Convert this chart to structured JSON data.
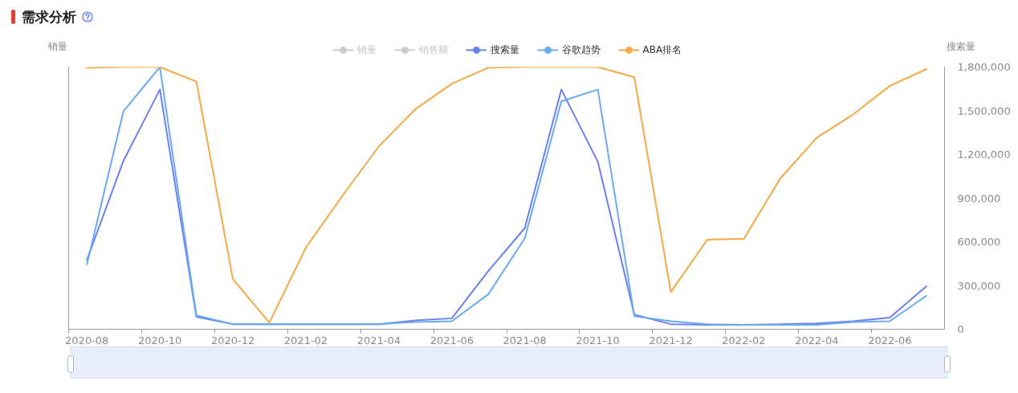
{
  "chart_data": {
    "type": "line",
    "title": "需求分析",
    "ylabel": "销量",
    "y2label": "搜索量",
    "categories": [
      "2020-08",
      null,
      "2020-10",
      null,
      "2020-12",
      null,
      "2021-02",
      null,
      "2021-04",
      null,
      "2021-06",
      null,
      "2021-08",
      null,
      "2021-10",
      null,
      "2021-12",
      null,
      "2022-02",
      null,
      "2022-04",
      null,
      "2022-06",
      null
    ],
    "series": [
      {
        "name": "销量",
        "color": "#cccccc",
        "values": [
          null,
          null,
          null,
          null,
          null,
          null,
          null,
          null,
          null,
          null,
          null,
          null,
          null,
          null,
          null,
          null,
          null,
          null,
          null,
          null,
          null,
          null,
          null,
          null
        ]
      },
      {
        "name": "销售额",
        "color": "#cccccc",
        "values": [
          null,
          null,
          null,
          null,
          null,
          null,
          null,
          null,
          null,
          null,
          null,
          null,
          null,
          null,
          null,
          null,
          null,
          null,
          null,
          null,
          null,
          null,
          null,
          null
        ]
      },
      {
        "name": "搜索量",
        "color": "#6b80ee",
        "axis": "y2",
        "values": [
          475000,
          1155000,
          1645000,
          85000,
          35000,
          35000,
          35000,
          35000,
          35000,
          60000,
          75000,
          400000,
          695000,
          1645000,
          1150000,
          100000,
          35000,
          30000,
          30000,
          35000,
          40000,
          55000,
          80000,
          295000
        ]
      },
      {
        "name": "谷歌趋势",
        "color": "#69aaf0",
        "axis": "y2",
        "values": [
          445000,
          1495000,
          1800000,
          95000,
          35000,
          35000,
          35000,
          35000,
          35000,
          50000,
          55000,
          240000,
          625000,
          1565000,
          1645000,
          90000,
          55000,
          35000,
          30000,
          30000,
          30000,
          50000,
          55000,
          230000
        ]
      },
      {
        "name": "ABA排名",
        "color": "#f4a847",
        "axis": "y2",
        "values": [
          1795000,
          1800000,
          1800000,
          1700000,
          345000,
          45000,
          560000,
          915000,
          1255000,
          1510000,
          1685000,
          1795000,
          1800000,
          1800000,
          1800000,
          1730000,
          255000,
          615000,
          620000,
          1035000,
          1315000,
          1475000,
          1670000,
          1785000
        ]
      }
    ],
    "y2lim": [
      0,
      1800000
    ],
    "y2ticks": [
      0,
      {
        "value": 300000,
        "label": "300,000"
      },
      {
        "value": 600000,
        "label": "600,000"
      },
      {
        "value": 900000,
        "label": "900,000"
      },
      {
        "value": 1200000,
        "label": "1,200,000"
      },
      {
        "value": 1500000,
        "label": "1,500,000"
      },
      {
        "value": 1800000,
        "label": "1,800,000"
      }
    ],
    "legend": "top"
  }
}
